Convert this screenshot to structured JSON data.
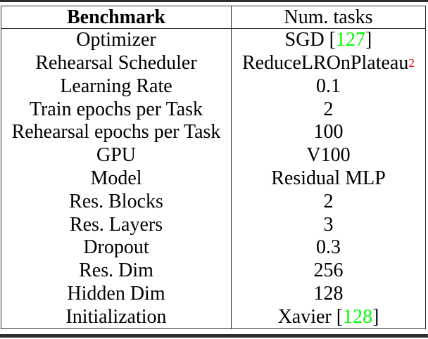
{
  "page": {
    "background": "#ffffff"
  },
  "colors": {
    "text": "#000000",
    "rule": "#2e2e2e",
    "citation_green": "#00ff00",
    "footnote_red": "#ff0000"
  },
  "table": {
    "header": {
      "col1": "Benchmark",
      "col2": "Num. tasks"
    },
    "rows": [
      {
        "label": "Optimizer",
        "value": [
          {
            "text": "SGD ["
          },
          {
            "text": "127",
            "color": "green",
            "link": true
          },
          {
            "text": "]"
          }
        ]
      },
      {
        "label": "Rehearsal Scheduler",
        "value": [
          {
            "text": "ReduceLROnPlateau"
          },
          {
            "text": "2",
            "color": "red",
            "sup": true,
            "link": true
          }
        ]
      },
      {
        "label": "Learning Rate",
        "value": [
          {
            "text": "0.1"
          }
        ]
      },
      {
        "label": "Train epochs per Task",
        "value": [
          {
            "text": "2"
          }
        ]
      },
      {
        "label": "Rehearsal epochs per Task",
        "value": [
          {
            "text": "100"
          }
        ]
      },
      {
        "label": "GPU",
        "value": [
          {
            "text": "V100"
          }
        ]
      },
      {
        "label": "Model",
        "value": [
          {
            "text": "Residual MLP"
          }
        ]
      },
      {
        "label": "Res. Blocks",
        "value": [
          {
            "text": "2"
          }
        ]
      },
      {
        "label": "Res. Layers",
        "value": [
          {
            "text": "3"
          }
        ]
      },
      {
        "label": "Dropout",
        "value": [
          {
            "text": "0.3"
          }
        ]
      },
      {
        "label": "Res. Dim",
        "value": [
          {
            "text": "256"
          }
        ]
      },
      {
        "label": "Hidden Dim",
        "value": [
          {
            "text": "128"
          }
        ]
      },
      {
        "label": "Initialization",
        "value": [
          {
            "text": "Xavier ["
          },
          {
            "text": "128",
            "color": "green",
            "link": true
          },
          {
            "text": "]"
          }
        ]
      }
    ]
  }
}
